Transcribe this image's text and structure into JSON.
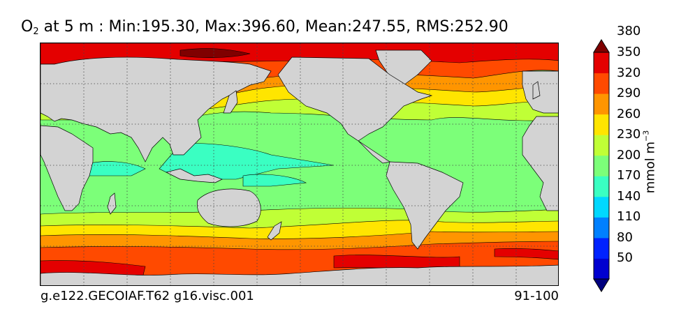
{
  "title": {
    "variable": "O",
    "subscript": "2",
    "rest": " at 5 m : Min:195.30, Max:396.60, Mean:247.55, RMS:252.90"
  },
  "footer": {
    "case_name": "g.e122.GECOIAF.T62 g16.visc.001",
    "years": "91-100"
  },
  "colorbar": {
    "units_base": "mmol m",
    "units_exponent": "−3",
    "ticks": [
      "50",
      "80",
      "110",
      "140",
      "170",
      "200",
      "230",
      "260",
      "290",
      "320",
      "350",
      "380"
    ],
    "levels": [
      {
        "range": "<50",
        "color": "#00007F"
      },
      {
        "range": "50-80",
        "color": "#0000D0"
      },
      {
        "range": "80-110",
        "color": "#0022FF"
      },
      {
        "range": "110-140",
        "color": "#0080FF"
      },
      {
        "range": "140-170",
        "color": "#00D8FF"
      },
      {
        "range": "170-200",
        "color": "#3AFFC2"
      },
      {
        "range": "200-230",
        "color": "#7CFF79"
      },
      {
        "range": "230-260",
        "color": "#C0FF36"
      },
      {
        "range": "260-290",
        "color": "#FFE500"
      },
      {
        "range": "290-320",
        "color": "#FF9500"
      },
      {
        "range": "320-350",
        "color": "#FF4A00"
      },
      {
        "range": "350-380",
        "color": "#E40000"
      },
      {
        "range": ">380",
        "color": "#7F0000"
      }
    ]
  },
  "map": {
    "projection": "cylindrical equidistant",
    "land_color": "#D3D3D3",
    "gridlines": "dotted",
    "extend_arrows": "both"
  }
}
